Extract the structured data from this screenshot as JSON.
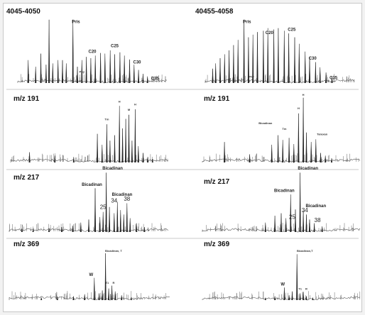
{
  "chart_data": [
    {
      "type": "line",
      "id": "tl",
      "title": "4045-4050",
      "peaks": [
        {
          "x": 0.07,
          "h": 0.35
        },
        {
          "x": 0.12,
          "h": 0.25
        },
        {
          "x": 0.155,
          "h": 0.45
        },
        {
          "x": 0.19,
          "h": 0.28
        },
        {
          "x": 0.21,
          "h": 0.97
        },
        {
          "x": 0.235,
          "h": 0.3
        },
        {
          "x": 0.27,
          "h": 0.35
        },
        {
          "x": 0.3,
          "h": 0.35
        },
        {
          "x": 0.325,
          "h": 0.3
        },
        {
          "x": 0.37,
          "h": 0.97
        },
        {
          "x": 0.4,
          "h": 0.25
        },
        {
          "x": 0.43,
          "h": 0.35
        },
        {
          "x": 0.46,
          "h": 0.4
        },
        {
          "x": 0.49,
          "h": 0.38
        },
        {
          "x": 0.52,
          "h": 0.42
        },
        {
          "x": 0.555,
          "h": 0.46
        },
        {
          "x": 0.585,
          "h": 0.45
        },
        {
          "x": 0.62,
          "h": 0.5
        },
        {
          "x": 0.65,
          "h": 0.44
        },
        {
          "x": 0.685,
          "h": 0.47
        },
        {
          "x": 0.715,
          "h": 0.42
        },
        {
          "x": 0.75,
          "h": 0.36
        },
        {
          "x": 0.78,
          "h": 0.28
        },
        {
          "x": 0.81,
          "h": 0.2
        },
        {
          "x": 0.84,
          "h": 0.14
        },
        {
          "x": 0.87,
          "h": 0.1
        }
      ],
      "labels": [
        {
          "text": "Pris",
          "x": 0.39,
          "h": 0.92,
          "cls": "lbl"
        },
        {
          "text": "C20",
          "x": 0.5,
          "h": 0.46,
          "cls": "lbl"
        },
        {
          "text": "Phy",
          "x": 0.43,
          "h": 0.16,
          "cls": "lbl-s"
        },
        {
          "text": "C25",
          "x": 0.65,
          "h": 0.55,
          "cls": "lbl"
        },
        {
          "text": "C30",
          "x": 0.8,
          "h": 0.3,
          "cls": "lbl"
        },
        {
          "text": "C35",
          "x": 0.92,
          "h": 0.05,
          "cls": "lbl"
        }
      ]
    },
    {
      "type": "line",
      "id": "tr",
      "title": "40455-4058",
      "peaks": [
        {
          "x": 0.05,
          "h": 0.22
        },
        {
          "x": 0.07,
          "h": 0.3
        },
        {
          "x": 0.1,
          "h": 0.38
        },
        {
          "x": 0.13,
          "h": 0.44
        },
        {
          "x": 0.16,
          "h": 0.5
        },
        {
          "x": 0.19,
          "h": 0.58
        },
        {
          "x": 0.22,
          "h": 0.66
        },
        {
          "x": 0.26,
          "h": 0.97
        },
        {
          "x": 0.29,
          "h": 0.7
        },
        {
          "x": 0.32,
          "h": 0.74
        },
        {
          "x": 0.35,
          "h": 0.78
        },
        {
          "x": 0.39,
          "h": 0.8
        },
        {
          "x": 0.42,
          "h": 0.84
        },
        {
          "x": 0.46,
          "h": 0.82
        },
        {
          "x": 0.49,
          "h": 0.84
        },
        {
          "x": 0.53,
          "h": 0.8
        },
        {
          "x": 0.56,
          "h": 0.76
        },
        {
          "x": 0.6,
          "h": 0.7
        },
        {
          "x": 0.63,
          "h": 0.6
        },
        {
          "x": 0.67,
          "h": 0.48
        },
        {
          "x": 0.7,
          "h": 0.4
        },
        {
          "x": 0.74,
          "h": 0.32
        },
        {
          "x": 0.77,
          "h": 0.24
        },
        {
          "x": 0.81,
          "h": 0.16
        },
        {
          "x": 0.85,
          "h": 0.1
        }
      ],
      "labels": [
        {
          "text": "Pris",
          "x": 0.28,
          "h": 0.92,
          "cls": "lbl"
        },
        {
          "text": "C20",
          "x": 0.43,
          "h": 0.75,
          "cls": "lbl"
        },
        {
          "text": "Phy",
          "x": 0.31,
          "h": 0.08,
          "cls": "lbl-s"
        },
        {
          "text": "C25",
          "x": 0.58,
          "h": 0.8,
          "cls": "lbl"
        },
        {
          "text": "C30",
          "x": 0.72,
          "h": 0.36,
          "cls": "lbl"
        },
        {
          "text": "C35",
          "x": 0.86,
          "h": 0.06,
          "cls": "lbl"
        }
      ]
    },
    {
      "type": "line",
      "id": "ml1",
      "title": "m/z 191",
      "peaks": [
        {
          "x": 0.12,
          "h": 0.15
        },
        {
          "x": 0.28,
          "h": 0.1
        },
        {
          "x": 0.4,
          "h": 0.08
        },
        {
          "x": 0.55,
          "h": 0.42
        },
        {
          "x": 0.58,
          "h": 0.26
        },
        {
          "x": 0.61,
          "h": 0.56
        },
        {
          "x": 0.63,
          "h": 0.32
        },
        {
          "x": 0.66,
          "h": 0.4
        },
        {
          "x": 0.69,
          "h": 0.83
        },
        {
          "x": 0.71,
          "h": 0.5
        },
        {
          "x": 0.73,
          "h": 0.64
        },
        {
          "x": 0.75,
          "h": 0.7
        },
        {
          "x": 0.77,
          "h": 0.32
        },
        {
          "x": 0.79,
          "h": 0.78
        },
        {
          "x": 0.81,
          "h": 0.24
        },
        {
          "x": 0.84,
          "h": 0.14
        },
        {
          "x": 0.87,
          "h": 0.08
        },
        {
          "x": 0.9,
          "h": 0.05
        }
      ],
      "labels": [
        {
          "text": "Tm",
          "x": 0.61,
          "h": 0.62,
          "cls": "lbl-s"
        },
        {
          "text": "H",
          "x": 0.69,
          "h": 0.88,
          "cls": "lbl-s"
        },
        {
          "text": "M",
          "x": 0.75,
          "h": 0.76,
          "cls": "lbl-s"
        },
        {
          "text": "H",
          "x": 0.79,
          "h": 0.84,
          "cls": "lbl-s"
        }
      ]
    },
    {
      "type": "line",
      "id": "mr1",
      "title": "m/z 191",
      "peaks": [
        {
          "x": 0.14,
          "h": 0.3
        },
        {
          "x": 0.3,
          "h": 0.12
        },
        {
          "x": 0.44,
          "h": 0.26
        },
        {
          "x": 0.48,
          "h": 0.4
        },
        {
          "x": 0.51,
          "h": 0.33
        },
        {
          "x": 0.55,
          "h": 0.36
        },
        {
          "x": 0.58,
          "h": 0.27
        },
        {
          "x": 0.61,
          "h": 0.72
        },
        {
          "x": 0.64,
          "h": 0.95
        },
        {
          "x": 0.66,
          "h": 0.44
        },
        {
          "x": 0.69,
          "h": 0.3
        },
        {
          "x": 0.72,
          "h": 0.34
        },
        {
          "x": 0.75,
          "h": 0.14
        },
        {
          "x": 0.78,
          "h": 0.1
        },
        {
          "x": 0.82,
          "h": 0.06
        }
      ],
      "labels": [
        {
          "text": "Bicadinan",
          "x": 0.4,
          "h": 0.56,
          "cls": "lbl-s"
        },
        {
          "text": "Tm",
          "x": 0.52,
          "h": 0.48,
          "cls": "lbl-s"
        },
        {
          "text": "H",
          "x": 0.61,
          "h": 0.78,
          "cls": "lbl-s"
        },
        {
          "text": "H",
          "x": 0.64,
          "h": 0.98,
          "cls": "lbl-s"
        },
        {
          "text": "Taraxan",
          "x": 0.76,
          "h": 0.4,
          "cls": "lbl-s"
        }
      ]
    },
    {
      "type": "line",
      "id": "ml2",
      "title": "m/z 217",
      "peaks": [
        {
          "x": 0.08,
          "h": 0.05
        },
        {
          "x": 0.15,
          "h": 0.04
        },
        {
          "x": 0.25,
          "h": 0.06
        },
        {
          "x": 0.33,
          "h": 0.08
        },
        {
          "x": 0.4,
          "h": 0.1
        },
        {
          "x": 0.45,
          "h": 0.15
        },
        {
          "x": 0.5,
          "h": 0.2
        },
        {
          "x": 0.54,
          "h": 0.7
        },
        {
          "x": 0.57,
          "h": 0.24
        },
        {
          "x": 0.59,
          "h": 0.32
        },
        {
          "x": 0.61,
          "h": 0.95
        },
        {
          "x": 0.63,
          "h": 0.4
        },
        {
          "x": 0.66,
          "h": 0.3
        },
        {
          "x": 0.68,
          "h": 0.48
        },
        {
          "x": 0.7,
          "h": 0.35
        },
        {
          "x": 0.72,
          "h": 0.28
        },
        {
          "x": 0.74,
          "h": 0.46
        },
        {
          "x": 0.76,
          "h": 0.22
        },
        {
          "x": 0.8,
          "h": 0.14
        },
        {
          "x": 0.85,
          "h": 0.08
        }
      ],
      "labels": [
        {
          "text": "Bicadinan",
          "x": 0.52,
          "h": 0.74,
          "cls": "lbl"
        },
        {
          "text": "Bicadinan",
          "x": 0.65,
          "h": 1.0,
          "cls": "lbl"
        },
        {
          "text": "Bicadinan",
          "x": 0.71,
          "h": 0.58,
          "cls": "lbl"
        },
        {
          "text": "25",
          "x": 0.59,
          "h": 0.37,
          "cls": "num"
        },
        {
          "text": "34",
          "x": 0.66,
          "h": 0.47,
          "cls": "num"
        },
        {
          "text": "38",
          "x": 0.74,
          "h": 0.5,
          "cls": "num"
        }
      ]
    },
    {
      "type": "line",
      "id": "mr2",
      "title": "m/z 217",
      "peaks": [
        {
          "x": 0.4,
          "h": 0.15
        },
        {
          "x": 0.46,
          "h": 0.26
        },
        {
          "x": 0.5,
          "h": 0.3
        },
        {
          "x": 0.53,
          "h": 0.22
        },
        {
          "x": 0.56,
          "h": 0.6
        },
        {
          "x": 0.59,
          "h": 0.36
        },
        {
          "x": 0.62,
          "h": 0.95
        },
        {
          "x": 0.64,
          "h": 0.34
        },
        {
          "x": 0.66,
          "h": 0.28
        },
        {
          "x": 0.68,
          "h": 0.2
        },
        {
          "x": 0.71,
          "h": 0.14
        },
        {
          "x": 0.76,
          "h": 0.09
        }
      ],
      "labels": [
        {
          "text": "Bicadinan",
          "x": 0.52,
          "h": 0.64,
          "cls": "lbl"
        },
        {
          "text": "Bicadinan",
          "x": 0.67,
          "h": 1.0,
          "cls": "lbl"
        },
        {
          "text": "Bicadinan",
          "x": 0.72,
          "h": 0.4,
          "cls": "lbl"
        },
        {
          "text": "25",
          "x": 0.57,
          "h": 0.21,
          "cls": "num"
        },
        {
          "text": "34",
          "x": 0.65,
          "h": 0.32,
          "cls": "num"
        },
        {
          "text": "38",
          "x": 0.73,
          "h": 0.16,
          "cls": "num"
        }
      ]
    },
    {
      "type": "line",
      "id": "ml3",
      "title": "m/z 369",
      "peaks": [
        {
          "x": 0.2,
          "h": 0.05
        },
        {
          "x": 0.3,
          "h": 0.06
        },
        {
          "x": 0.4,
          "h": 0.08
        },
        {
          "x": 0.47,
          "h": 0.12
        },
        {
          "x": 0.53,
          "h": 0.46
        },
        {
          "x": 0.56,
          "h": 0.14
        },
        {
          "x": 0.58,
          "h": 0.2
        },
        {
          "x": 0.6,
          "h": 0.97
        },
        {
          "x": 0.62,
          "h": 0.24
        },
        {
          "x": 0.64,
          "h": 0.3
        },
        {
          "x": 0.66,
          "h": 0.18
        },
        {
          "x": 0.7,
          "h": 0.1
        },
        {
          "x": 0.76,
          "h": 0.06
        }
      ],
      "labels": [
        {
          "text": "W",
          "x": 0.51,
          "h": 0.5,
          "cls": "lbl"
        },
        {
          "text": "Bicadinan, T",
          "x": 0.65,
          "h": 1.0,
          "cls": "lbl-s"
        },
        {
          "text": "T1",
          "x": 0.61,
          "h": 0.34,
          "cls": "lbl-s"
        },
        {
          "text": "R",
          "x": 0.65,
          "h": 0.34,
          "cls": "lbl-s"
        }
      ]
    },
    {
      "type": "line",
      "id": "mr3",
      "title": "m/z 369",
      "peaks": [
        {
          "x": 0.4,
          "h": 0.05
        },
        {
          "x": 0.46,
          "h": 0.08
        },
        {
          "x": 0.52,
          "h": 0.26
        },
        {
          "x": 0.55,
          "h": 0.1
        },
        {
          "x": 0.57,
          "h": 0.18
        },
        {
          "x": 0.6,
          "h": 0.95
        },
        {
          "x": 0.62,
          "h": 0.14
        },
        {
          "x": 0.64,
          "h": 0.17
        },
        {
          "x": 0.66,
          "h": 0.08
        },
        {
          "x": 0.7,
          "h": 0.05
        }
      ],
      "labels": [
        {
          "text": "W",
          "x": 0.51,
          "h": 0.3,
          "cls": "lbl"
        },
        {
          "text": "Bicadinan,T",
          "x": 0.65,
          "h": 1.0,
          "cls": "lbl-s"
        },
        {
          "text": "T1",
          "x": 0.62,
          "h": 0.21,
          "cls": "lbl-s"
        },
        {
          "text": "R",
          "x": 0.66,
          "h": 0.21,
          "cls": "lbl-s"
        }
      ]
    }
  ]
}
